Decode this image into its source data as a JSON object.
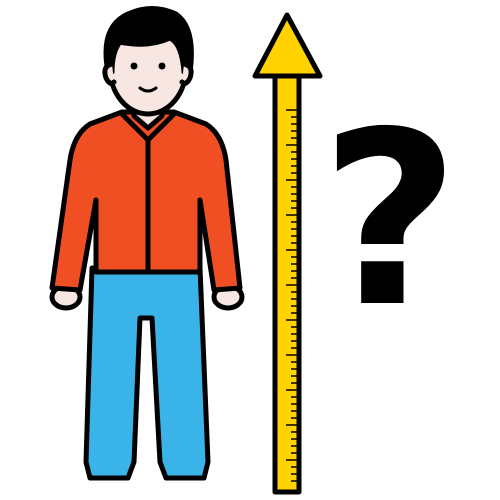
{
  "symbol": "?"
}
